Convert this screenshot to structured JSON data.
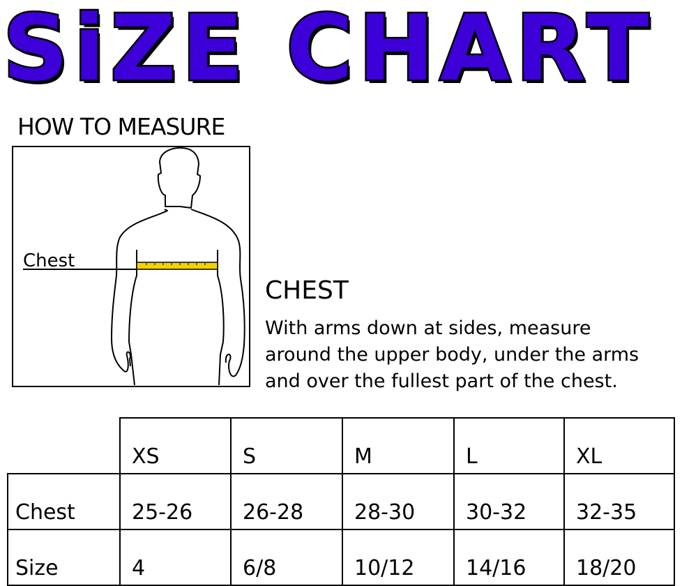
{
  "title": "SiZE CHART",
  "how_to_measure": "HOW TO MEASURE",
  "figure": {
    "label": "Chest",
    "tape_color": "#f5d000"
  },
  "chest": {
    "heading": "CHEST",
    "lines": [
      "With arms down at sides, measure",
      "around the upper body, under the arms",
      "and over the fullest part of the chest."
    ]
  },
  "colors": {
    "title_fill": "#3d00d8",
    "title_outline": "#000000"
  },
  "table": {
    "columns": [
      "XS",
      "S",
      "M",
      "L",
      "XL"
    ],
    "rows": [
      {
        "label": "Chest",
        "values": [
          "25-26",
          "26-28",
          "28-30",
          "30-32",
          "32-35"
        ]
      },
      {
        "label": "Size",
        "values": [
          "4",
          "6/8",
          "10/12",
          "14/16",
          "18/20"
        ]
      }
    ]
  }
}
